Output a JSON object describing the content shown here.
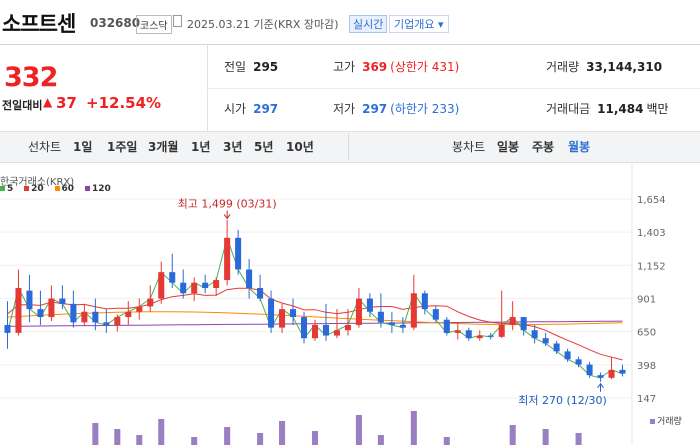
{
  "header": {
    "name": "소프트센",
    "code": "032680",
    "market": "코스닥",
    "date": "2025.03.21",
    "basis": "기준(KRX 장마감)",
    "realtime": "실시간",
    "company_button": "기업개요 ▾"
  },
  "price": {
    "current": "332",
    "change_label": "전일대비",
    "change_arrow": "▲",
    "change": "37",
    "change_pct": "+12.54%"
  },
  "stats": {
    "prev_close_label": "전일",
    "prev_close": "295",
    "high_label": "고가",
    "high": "369",
    "upper_limit": "(상한가 431)",
    "volume_label": "거래량",
    "volume": "33,144,310",
    "open_label": "시가",
    "open": "297",
    "low_label": "저가",
    "low": "297",
    "lower_limit": "(하한가 233)",
    "value_label": "거래대금",
    "value": "11,484",
    "value_unit": "백만"
  },
  "toolbar": {
    "line_chart": "선차트",
    "periods": [
      "1일",
      "1주일",
      "3개월",
      "1년",
      "3년",
      "5년",
      "10년"
    ],
    "candle_chart": "봉차트",
    "intervals": [
      "일봉",
      "주봉",
      "월봉"
    ],
    "selected_interval": "월봉"
  },
  "chart_data": {
    "type": "candlestick",
    "source": "한국거래소(KRX)",
    "legend": [
      {
        "name": "5",
        "color": "#4caf50"
      },
      {
        "name": "20",
        "color": "#e53935"
      },
      {
        "name": "60",
        "color": "#fb8c00"
      },
      {
        "name": "120",
        "color": "#8e44ad"
      }
    ],
    "y_ticks": [
      1654,
      1403,
      1152,
      901,
      650,
      398,
      147
    ],
    "ylim": [
      147,
      1654
    ],
    "max_label": "최고 1,499 (03/31)",
    "min_label": "최저 270 (12/30)",
    "volume_label": "거래량",
    "candles": [
      [
        700,
        880,
        520,
        640
      ],
      [
        640,
        1120,
        620,
        980
      ],
      [
        960,
        1080,
        720,
        820
      ],
      [
        820,
        960,
        700,
        760
      ],
      [
        760,
        1000,
        730,
        900
      ],
      [
        900,
        1000,
        820,
        860
      ],
      [
        860,
        960,
        680,
        720
      ],
      [
        720,
        860,
        690,
        800
      ],
      [
        800,
        900,
        660,
        720
      ],
      [
        720,
        820,
        640,
        700
      ],
      [
        700,
        780,
        650,
        760
      ],
      [
        760,
        880,
        700,
        800
      ],
      [
        800,
        900,
        740,
        840
      ],
      [
        840,
        1000,
        800,
        900
      ],
      [
        900,
        1180,
        860,
        1100
      ],
      [
        1100,
        1240,
        980,
        1020
      ],
      [
        1020,
        1120,
        900,
        940
      ],
      [
        940,
        1060,
        880,
        1020
      ],
      [
        1020,
        1080,
        940,
        980
      ],
      [
        980,
        1060,
        920,
        1040
      ],
      [
        1040,
        1499,
        1000,
        1360
      ],
      [
        1360,
        1420,
        1080,
        1120
      ],
      [
        1120,
        1200,
        900,
        980
      ],
      [
        980,
        1080,
        880,
        900
      ],
      [
        900,
        960,
        640,
        680
      ],
      [
        680,
        860,
        640,
        820
      ],
      [
        820,
        900,
        700,
        760
      ],
      [
        760,
        800,
        560,
        600
      ],
      [
        600,
        740,
        580,
        700
      ],
      [
        700,
        860,
        580,
        620
      ],
      [
        620,
        820,
        600,
        660
      ],
      [
        660,
        820,
        620,
        700
      ],
      [
        700,
        980,
        680,
        900
      ],
      [
        900,
        940,
        760,
        800
      ],
      [
        800,
        940,
        680,
        720
      ],
      [
        720,
        800,
        640,
        700
      ],
      [
        700,
        760,
        640,
        680
      ],
      [
        680,
        1080,
        660,
        940
      ],
      [
        940,
        960,
        780,
        820
      ],
      [
        820,
        840,
        720,
        740
      ],
      [
        740,
        760,
        620,
        640
      ],
      [
        640,
        720,
        590,
        660
      ],
      [
        660,
        680,
        580,
        600
      ],
      [
        600,
        660,
        580,
        620
      ],
      [
        620,
        640,
        590,
        610
      ],
      [
        610,
        960,
        600,
        700
      ],
      [
        700,
        880,
        660,
        760
      ],
      [
        760,
        760,
        620,
        660
      ],
      [
        660,
        700,
        560,
        600
      ],
      [
        600,
        640,
        540,
        560
      ],
      [
        560,
        580,
        480,
        500
      ],
      [
        500,
        520,
        420,
        440
      ],
      [
        440,
        460,
        380,
        400
      ],
      [
        400,
        420,
        300,
        320
      ],
      [
        320,
        340,
        270,
        300
      ],
      [
        300,
        460,
        290,
        360
      ],
      [
        360,
        400,
        310,
        332
      ]
    ]
  }
}
